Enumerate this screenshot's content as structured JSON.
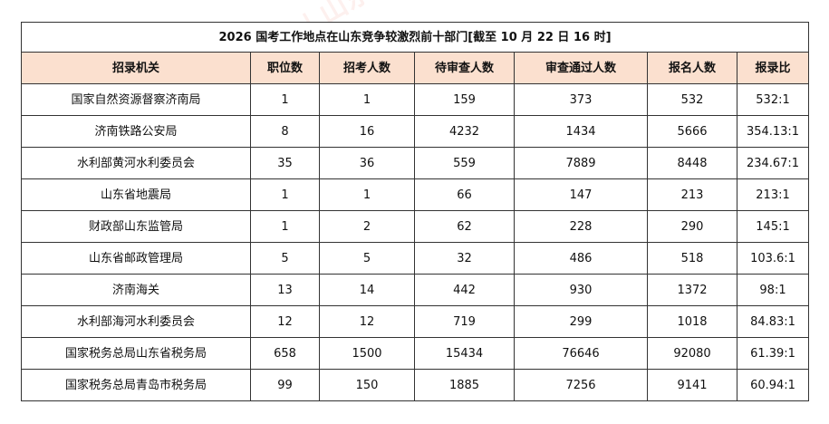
{
  "table": {
    "title": "2026 国考工作地点在山东竞争较激烈前十部门[截至 10 月 22 日 16 时]",
    "headers": [
      "招录机关",
      "职位数",
      "招考人数",
      "待审查人数",
      "审查通过人数",
      "报名人数",
      "报录比"
    ],
    "rows": [
      [
        "国家自然资源督察济南局",
        "1",
        "1",
        "159",
        "373",
        "532",
        "532:1"
      ],
      [
        "济南铁路公安局",
        "8",
        "16",
        "4232",
        "1434",
        "5666",
        "354.13:1"
      ],
      [
        "水利部黄河水利委员会",
        "35",
        "36",
        "559",
        "7889",
        "8448",
        "234.67:1"
      ],
      [
        "山东省地震局",
        "1",
        "1",
        "66",
        "147",
        "213",
        "213:1"
      ],
      [
        "财政部山东监管局",
        "1",
        "2",
        "62",
        "228",
        "290",
        "145:1"
      ],
      [
        "山东省邮政管理局",
        "5",
        "5",
        "32",
        "486",
        "518",
        "103.6:1"
      ],
      [
        "济南海关",
        "13",
        "14",
        "442",
        "930",
        "1372",
        "98:1"
      ],
      [
        "水利部海河水利委员会",
        "12",
        "12",
        "719",
        "299",
        "1018",
        "84.83:1"
      ],
      [
        "国家税务总局山东省税务局",
        "658",
        "1500",
        "15434",
        "76646",
        "92080",
        "61.39:1"
      ],
      [
        "国家税务总局青岛市税务局",
        "99",
        "150",
        "1885",
        "7256",
        "9141",
        "60.94:1"
      ]
    ]
  },
  "watermark": {
    "text": "offcn 中公教育 | 山东",
    "color": "#e65a46"
  },
  "colors": {
    "header_bg": "#fbe0cf",
    "border": "#333333"
  }
}
